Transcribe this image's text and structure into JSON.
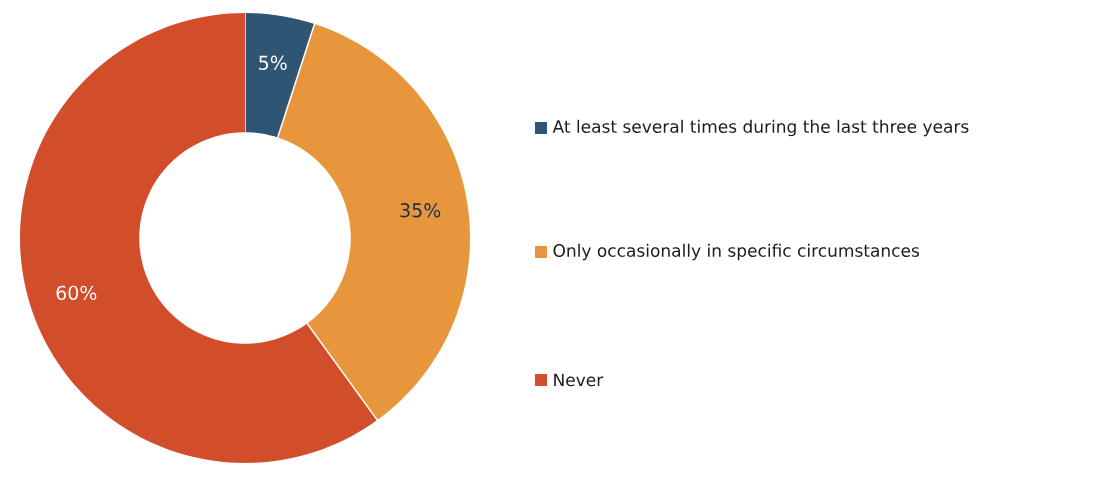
{
  "chart_data": {
    "type": "donut",
    "categories": [
      "At least several times during the last three years",
      "Only occasionally in specific circumstances",
      "Never"
    ],
    "values": [
      5,
      35,
      60
    ],
    "colors": [
      "#2e5573",
      "#e8963c",
      "#d24e2a"
    ],
    "value_labels": [
      "5%",
      "35%",
      "60%"
    ],
    "legend": "right"
  }
}
